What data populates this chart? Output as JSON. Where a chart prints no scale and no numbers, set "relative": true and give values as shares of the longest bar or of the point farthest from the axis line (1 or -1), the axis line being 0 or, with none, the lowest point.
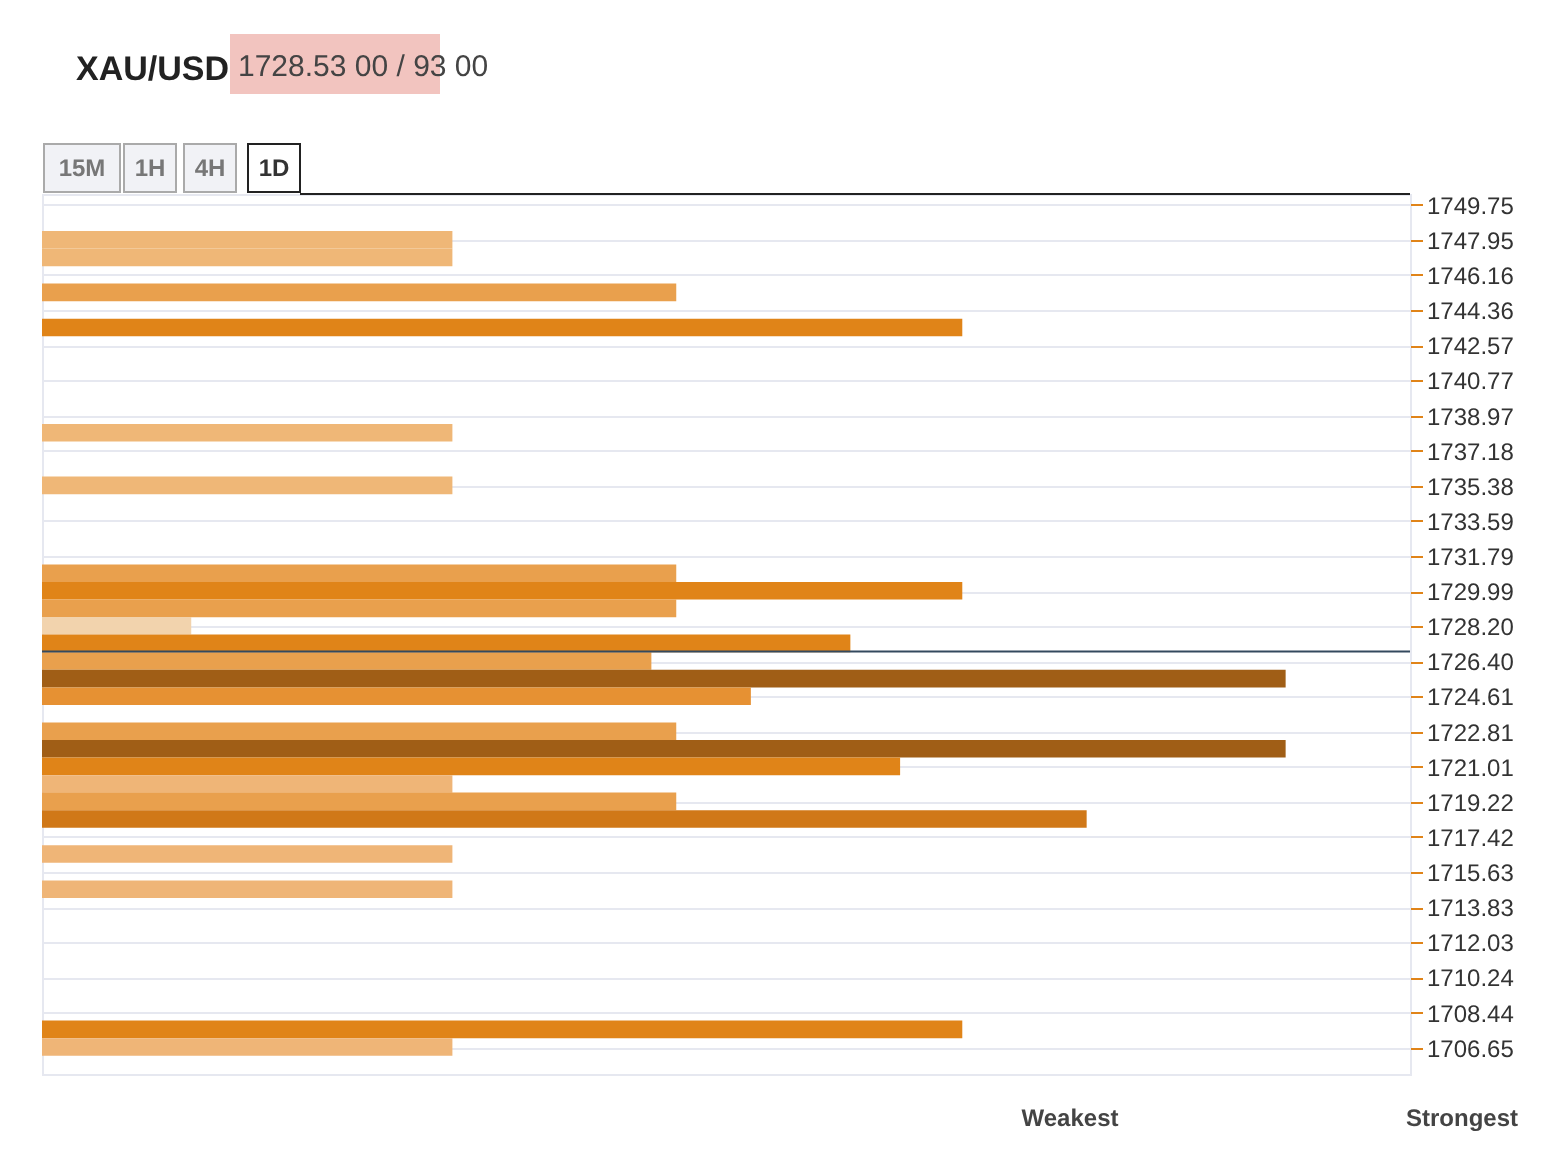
{
  "chart_data": {
    "type": "bar",
    "orientation": "horizontal",
    "relative": true,
    "title": "XAU/USD",
    "subtitle": "1728.53 00 / 93 00",
    "x": [
      1747.96,
      1747.06,
      1745.27,
      1743.47,
      1738.09,
      1735.4,
      1730.91,
      1730.01,
      1729.11,
      1728.22,
      1727.32,
      1726.42,
      1725.52,
      1724.62,
      1722.83,
      1721.93,
      1721.03,
      1720.13,
      1719.24,
      1718.34,
      1716.55,
      1714.75,
      1707.58,
      1706.68
    ],
    "values": [
      0.33,
      0.33,
      0.51,
      0.74,
      0.33,
      0.33,
      0.51,
      0.74,
      0.51,
      0.12,
      0.65,
      0.49,
      1.0,
      0.57,
      0.51,
      1.0,
      0.69,
      0.33,
      0.51,
      0.84,
      0.33,
      0.33,
      0.74,
      0.33
    ],
    "colors": [
      "#efb777",
      "#efb777",
      "#e9a04d",
      "#e08418",
      "#efb777",
      "#efb777",
      "#e9a04d",
      "#e08418",
      "#e9a04d",
      "#f2d3ad",
      "#e08418",
      "#e9a04d",
      "#a05e16",
      "#e69133",
      "#e9a04d",
      "#a05e16",
      "#e08418",
      "#efb577",
      "#e9a04d",
      "#d07818",
      "#efb577",
      "#efb577",
      "#e08418",
      "#efb577"
    ],
    "ylim": [
      1705.3,
      1750.3
    ],
    "yticks": [
      1749.75,
      1747.95,
      1746.16,
      1744.36,
      1742.57,
      1740.77,
      1738.97,
      1737.18,
      1735.38,
      1733.59,
      1731.79,
      1729.99,
      {
        "value": 1728.2,
        "label": "1728.20"
      },
      {
        "value": 1726.4,
        "label": "1726.40"
      },
      1724.61,
      1722.81,
      1721.01,
      1719.22,
      1717.42,
      1715.63,
      1713.83,
      1712.03,
      1710.24,
      1708.44,
      1706.65
    ],
    "grid": "y",
    "ref_lines": [
      {
        "axis": "y",
        "value": 1726.9,
        "color": "#34495e"
      }
    ],
    "annotations": [
      "15M",
      "1H",
      "4H",
      "1D",
      "Weakest",
      "Strongest"
    ]
  }
}
